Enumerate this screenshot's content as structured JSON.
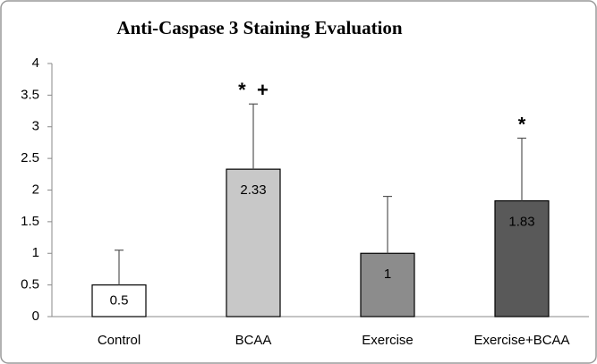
{
  "chart_data": {
    "type": "bar",
    "title": "Anti-Caspase 3 Staining Evaluation",
    "categories": [
      "Control",
      "BCAA",
      "Exercise",
      "Exercise+BCAA"
    ],
    "values": [
      0.5,
      2.33,
      1,
      1.83
    ],
    "errors": [
      0.55,
      1.03,
      0.9,
      0.99
    ],
    "colors": [
      "#ffffff",
      "#c8c8c8",
      "#8c8c8c",
      "#595959"
    ],
    "markers": [
      null,
      "*  +",
      null,
      "*"
    ],
    "ylim": [
      0,
      4
    ],
    "yticks": [
      0,
      0.5,
      1,
      1.5,
      2,
      2.5,
      3,
      3.5,
      4
    ],
    "grid": false
  }
}
